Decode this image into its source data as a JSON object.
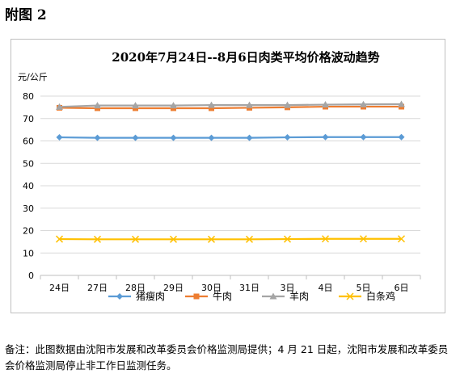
{
  "figure_label": "附图 2",
  "note": "备注：此图数据由沈阳市发展和改革委员会价格监测局提供；4 月 21 日起，沈阳市发展和改革委员会价格监测局停止非工作日监测任务。",
  "chart_data": {
    "type": "line",
    "title": "2020年7月24日--8月6日肉类平均价格波动趋势",
    "ylabel": "元/公斤",
    "xlabel": "",
    "categories": [
      "24日",
      "27日",
      "28日",
      "29日",
      "30日",
      "31日",
      "3日",
      "4日",
      "5日",
      "6日"
    ],
    "ylim": [
      0,
      80
    ],
    "yticks": [
      0,
      10,
      20,
      30,
      40,
      50,
      60,
      70,
      80
    ],
    "grid": true,
    "legend_position": "bottom",
    "series": [
      {
        "name": "猪瘦肉",
        "color": "#5b9bd5",
        "marker": "diamond",
        "values": [
          61.6,
          61.4,
          61.4,
          61.4,
          61.4,
          61.4,
          61.6,
          61.7,
          61.7,
          61.7
        ]
      },
      {
        "name": "牛肉",
        "color": "#ed7d31",
        "marker": "square",
        "values": [
          74.8,
          74.6,
          74.6,
          74.6,
          74.6,
          74.8,
          75.0,
          75.3,
          75.3,
          75.3
        ]
      },
      {
        "name": "羊肉",
        "color": "#a5a5a5",
        "marker": "triangle",
        "values": [
          75.2,
          75.8,
          75.8,
          75.8,
          76.0,
          76.0,
          76.0,
          76.2,
          76.3,
          76.4
        ]
      },
      {
        "name": "白条鸡",
        "color": "#ffc000",
        "marker": "x",
        "values": [
          16.2,
          16.1,
          16.1,
          16.1,
          16.1,
          16.1,
          16.2,
          16.3,
          16.3,
          16.3
        ]
      }
    ]
  }
}
